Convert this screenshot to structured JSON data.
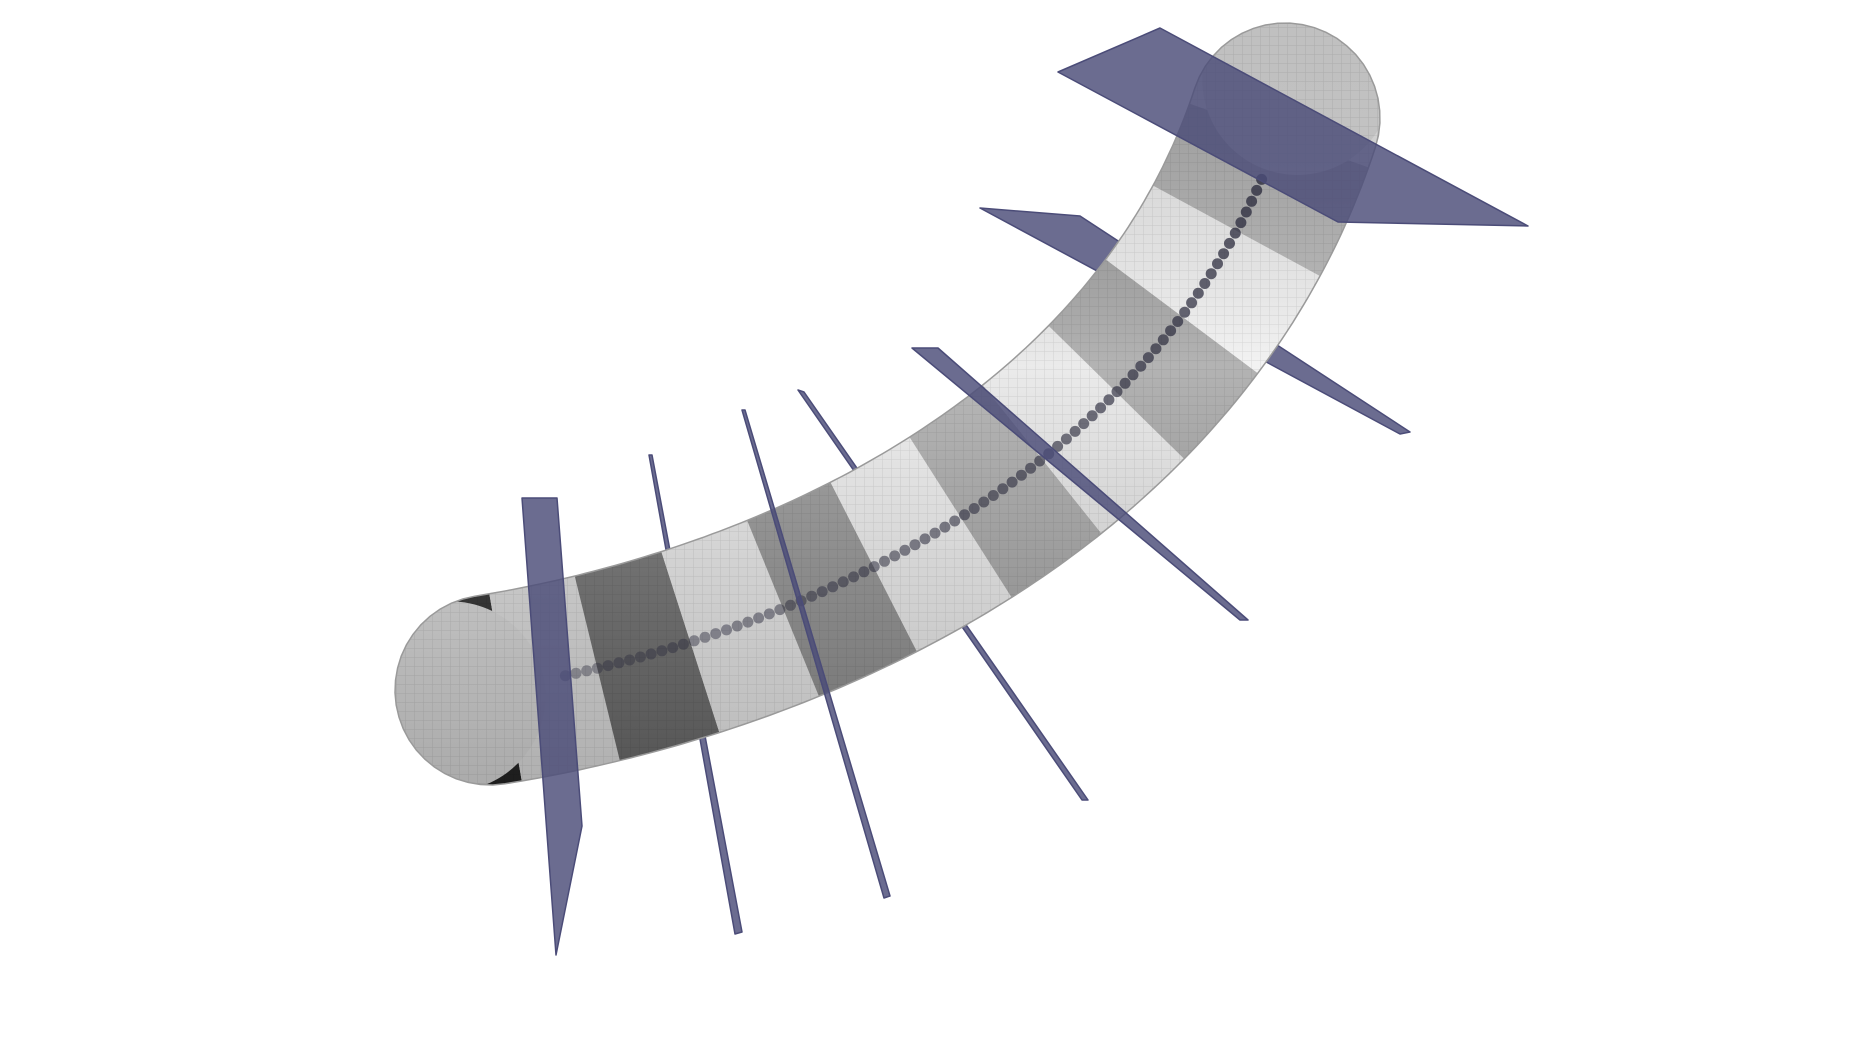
{
  "figure": {
    "colors": {
      "background": "#ffffff",
      "plane": "#4b4c78",
      "tube_light": "#f2f2f2",
      "tube_mid": "#b8b8b8",
      "tube_dark": "#1a1a1a",
      "centerline": "#2a2a3c"
    },
    "segment_shades": [
      "#242424",
      "#dcdcdc",
      "#6a6a6a",
      "#e8e8e8",
      "#8e8e8e",
      "#ececec",
      "#a2a2a2",
      "#e4e4e4",
      "#9a9a9a",
      "#eeeeee",
      "#b0b0b0",
      "#e6e6e6"
    ],
    "plane_count": 7,
    "centerline_bead_count": 78
  }
}
